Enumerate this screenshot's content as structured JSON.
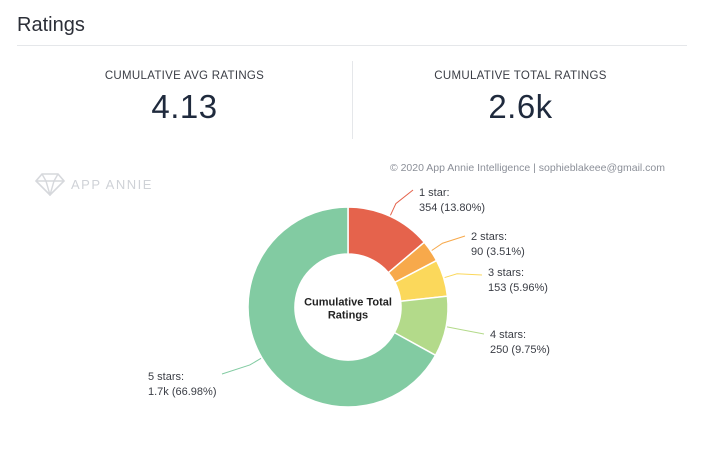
{
  "header": {
    "title": "Ratings"
  },
  "metrics": {
    "avg": {
      "label": "CUMULATIVE AVG RATINGS",
      "value": "4.13"
    },
    "total": {
      "label": "CUMULATIVE TOTAL RATINGS",
      "value": "2.6k"
    }
  },
  "copyright": "© 2020 App Annie Intelligence | sophieblakeee@gmail.com",
  "watermark": "APP ANNIE",
  "chart_data": {
    "type": "pie",
    "center_label": [
      "Cumulative Total",
      "Ratings"
    ],
    "slices": [
      {
        "name": "1 star:",
        "value": 354,
        "display": "354 (13.80%)",
        "percent": 13.8,
        "color": "#e5634c"
      },
      {
        "name": "2 stars:",
        "value": 90,
        "display": "90 (3.51%)",
        "percent": 3.51,
        "color": "#f7a94b"
      },
      {
        "name": "3 stars:",
        "value": 153,
        "display": "153 (5.96%)",
        "percent": 5.96,
        "color": "#fbd85b"
      },
      {
        "name": "4 stars:",
        "value": 250,
        "display": "250 (9.75%)",
        "percent": 9.75,
        "color": "#b3da8a"
      },
      {
        "name": "5 stars:",
        "value": 1718,
        "display": "1.7k (66.98%)",
        "percent": 66.98,
        "color": "#82cba2"
      }
    ]
  }
}
